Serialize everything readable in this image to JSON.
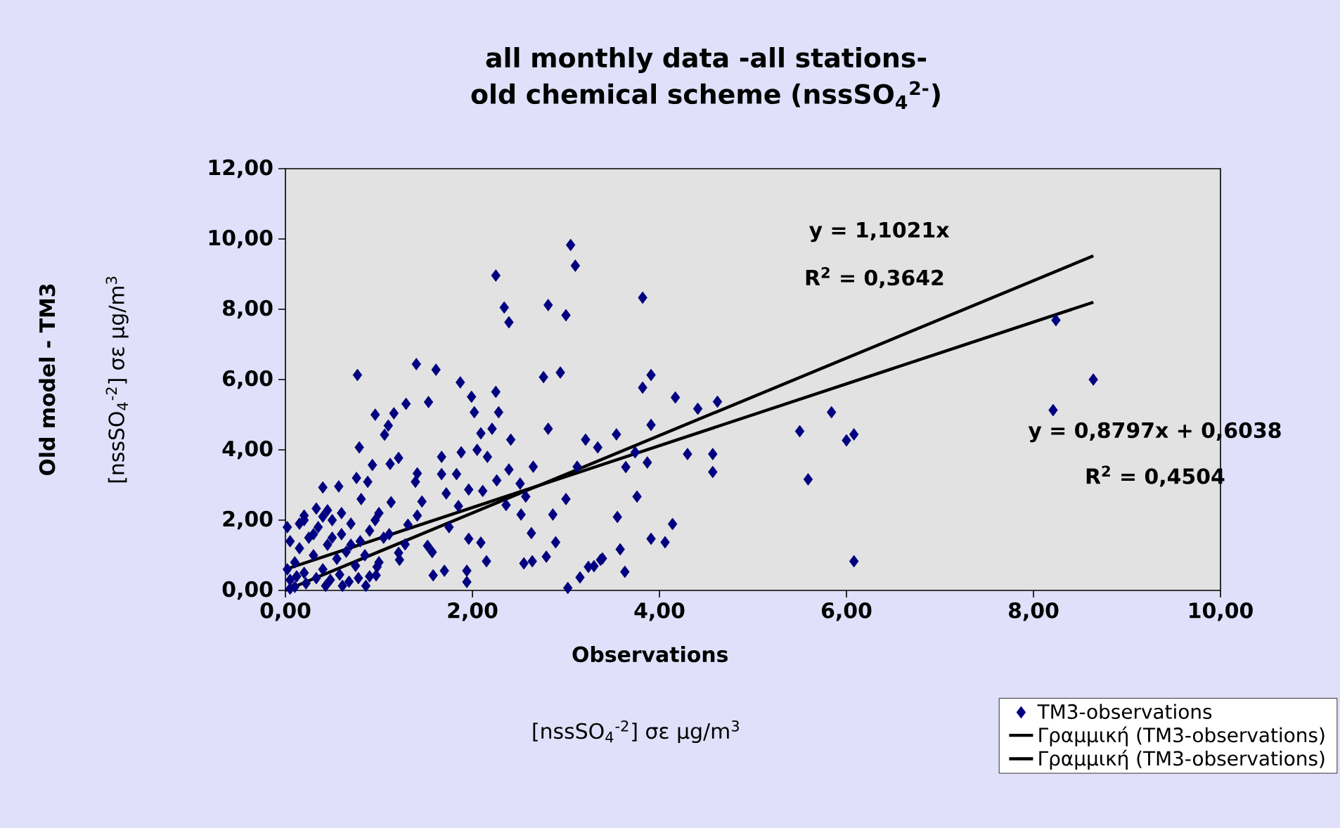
{
  "chart_data": {
    "type": "scatter",
    "title": "all monthly data -all stations- old chemical scheme (nssSO$_{4}$$^{2-}$)",
    "xlabel": "Observations",
    "annotations": [
      "Old model - TM3",
      "y = 1,1021x",
      "R$^{2}$ = 0,3642",
      "y = 0,8797x + 0,6038",
      "R$^{2}$ = 0,4504",
      "[nssSO$_{4}$$^{-2}$] σε μg/m$^{3}$",
      "[nssSO$_{4}$$^{-2}$] σε μg/m$^{3}$"
    ],
    "xlim": [
      0,
      10
    ],
    "ylim": [
      0,
      12
    ],
    "xticks": [
      {
        "value": 0,
        "label": "0,00"
      },
      {
        "value": 2,
        "label": "2,00"
      },
      {
        "value": 4,
        "label": "4,00"
      },
      {
        "value": 6,
        "label": "6,00"
      },
      {
        "value": 8,
        "label": "8,00"
      },
      {
        "value": 10,
        "label": "10,00"
      }
    ],
    "yticks": [
      {
        "value": 0,
        "label": "0,00"
      },
      {
        "value": 2,
        "label": "2,00"
      },
      {
        "value": 4,
        "label": "4,00"
      },
      {
        "value": 6,
        "label": "6,00"
      },
      {
        "value": 8,
        "label": "8,00"
      },
      {
        "value": 10,
        "label": "10,00"
      },
      {
        "value": 12,
        "label": "12,00"
      }
    ],
    "grid": false,
    "legend": "bottom right",
    "marker": "diamond",
    "series": [
      {
        "name": "TM3-observations",
        "color": "#000080",
        "x": [
          3.05,
          3.1,
          2.25,
          2.34,
          2.39,
          2.81,
          3.0,
          0.77,
          1.4,
          1.61,
          1.87,
          1.99,
          2.02,
          2.25,
          2.28,
          2.76,
          2.94,
          1.53,
          1.29,
          0.96,
          1.16,
          1.1,
          1.06,
          0.79,
          2.21,
          2.09,
          2.41,
          2.81,
          3.21,
          3.34,
          1.88,
          1.67,
          2.05,
          2.16,
          2.65,
          3.12,
          1.21,
          1.12,
          0.93,
          0.76,
          0.4,
          0.57,
          1.41,
          1.67,
          1.83,
          1.39,
          1.72,
          1.96,
          2.11,
          2.26,
          2.39,
          2.51,
          2.57,
          2.36,
          3.0,
          2.86,
          2.52,
          1.85,
          1.13,
          1.46,
          2.63,
          2.89,
          2.79,
          2.55,
          2.64,
          2.15,
          1.96,
          2.09,
          1.75,
          1.52,
          1.57,
          1.22,
          1.28,
          1.58,
          1.7,
          1.94,
          1.94,
          3.02,
          3.15,
          3.24,
          3.37,
          0.97,
          0.02,
          0.2,
          0.33,
          0.45,
          0.81,
          0.88,
          0.96,
          1.11,
          1.31,
          1.41,
          1.21,
          0.98,
          0.43,
          0.61,
          0.86,
          0.05,
          0.1,
          0.15,
          0.2,
          0.25,
          0.3,
          0.35,
          0.4,
          0.45,
          0.5,
          0.55,
          0.6,
          0.65,
          0.7,
          0.75,
          0.8,
          0.85,
          0.9,
          0.05,
          0.1,
          0.15,
          0.2,
          0.3,
          0.4,
          0.5,
          0.6,
          0.7,
          0.05,
          0.02,
          0.12,
          0.22,
          0.33,
          0.48,
          0.58,
          0.68,
          0.78,
          0.9,
          1.0,
          1.05,
          1.0,
          3.82,
          3.91,
          3.82,
          4.17,
          4.41,
          4.62,
          3.91,
          3.54,
          3.64,
          3.87,
          4.3,
          4.57,
          4.57,
          3.76,
          3.55,
          4.14,
          3.91,
          4.06,
          3.58,
          3.39,
          3.3,
          3.63,
          5.5,
          5.84,
          5.59,
          6.0,
          6.08,
          6.08,
          3.74,
          8.24,
          8.64,
          8.21
        ],
        "values": [
          9.83,
          9.24,
          8.96,
          8.05,
          7.63,
          8.12,
          7.83,
          6.13,
          6.44,
          6.28,
          5.92,
          5.51,
          5.07,
          5.65,
          5.07,
          6.07,
          6.2,
          5.36,
          5.31,
          5.0,
          5.04,
          4.69,
          4.43,
          4.07,
          4.6,
          4.47,
          4.29,
          4.6,
          4.29,
          4.07,
          3.93,
          3.8,
          4.0,
          3.8,
          3.52,
          3.52,
          3.77,
          3.6,
          3.57,
          3.2,
          2.93,
          2.96,
          3.33,
          3.31,
          3.31,
          3.09,
          2.76,
          2.87,
          2.83,
          3.13,
          3.44,
          3.04,
          2.67,
          2.43,
          2.6,
          2.16,
          2.16,
          2.4,
          2.51,
          2.53,
          1.63,
          1.37,
          0.96,
          0.77,
          0.83,
          0.83,
          1.47,
          1.36,
          1.8,
          1.27,
          1.09,
          0.87,
          1.31,
          0.43,
          0.56,
          0.56,
          0.24,
          0.07,
          0.37,
          0.67,
          0.87,
          0.43,
          1.8,
          2.13,
          2.33,
          2.28,
          2.6,
          3.09,
          2.0,
          1.6,
          1.87,
          2.13,
          1.07,
          0.67,
          0.13,
          0.13,
          0.13,
          0.3,
          0.8,
          1.2,
          0.5,
          1.5,
          1.0,
          1.8,
          0.6,
          1.3,
          2.0,
          0.9,
          1.6,
          1.1,
          1.9,
          0.7,
          1.4,
          1.0,
          1.7,
          1.4,
          0.1,
          1.9,
          2.0,
          1.6,
          2.1,
          1.5,
          2.2,
          1.3,
          0.05,
          0.6,
          0.4,
          0.2,
          0.35,
          0.3,
          0.45,
          0.25,
          0.35,
          0.4,
          0.8,
          1.5,
          2.2,
          8.33,
          6.13,
          5.77,
          5.49,
          5.17,
          5.37,
          4.71,
          4.44,
          3.51,
          3.64,
          3.88,
          3.88,
          3.37,
          2.67,
          2.09,
          1.89,
          1.47,
          1.37,
          1.17,
          0.91,
          0.69,
          0.53,
          4.53,
          5.07,
          3.16,
          4.27,
          4.44,
          0.83,
          3.93,
          7.69,
          6.0,
          5.13
        ]
      },
      {
        "name": "Γραμμική (TM3-observations)",
        "color": "#000000",
        "type": "line",
        "marker": "none",
        "line_style": "solid",
        "x": [
          0,
          8.64
        ],
        "values": [
          0,
          9.52
        ]
      },
      {
        "name": "Γραμμική (TM3-observations)",
        "color": "#000000",
        "type": "line",
        "marker": "none",
        "line_style": "solid",
        "x": [
          0,
          8.64
        ],
        "values": [
          0.6,
          8.2
        ]
      }
    ]
  }
}
